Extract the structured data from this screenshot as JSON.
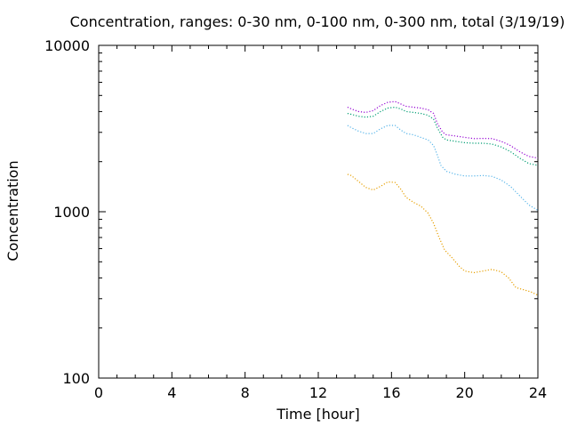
{
  "chart_data": {
    "type": "line",
    "title": "Concentration, ranges: 0-30 nm, 0-100 nm, 0-300 nm, total (3/19/19)",
    "xlabel": "Time [hour]",
    "ylabel": "Concentration",
    "xlim": [
      0,
      24
    ],
    "ylim": [
      100,
      10000
    ],
    "yscale": "log",
    "xticks": [
      0,
      4,
      8,
      12,
      16,
      20,
      24
    ],
    "xtick_labels": [
      "0",
      "4",
      "8",
      "12",
      "16",
      "20",
      "24"
    ],
    "yticks": [
      100,
      1000,
      10000
    ],
    "ytick_labels": [
      "100",
      "1000",
      "10000"
    ],
    "grid": false,
    "line_style": "dotted",
    "series": [
      {
        "color": "#e69f00",
        "x": [
          13.6,
          13.8,
          14.2,
          14.6,
          15.0,
          15.4,
          15.8,
          16.2,
          16.5,
          16.8,
          17.2,
          17.6,
          18.0,
          18.3,
          18.6,
          18.9,
          19.3,
          19.7,
          20.0,
          20.5,
          21.0,
          21.5,
          22.0,
          22.4,
          22.8,
          23.2,
          23.6,
          24.0
        ],
        "y": [
          1680,
          1650,
          1520,
          1400,
          1350,
          1420,
          1510,
          1500,
          1370,
          1220,
          1140,
          1080,
          980,
          850,
          700,
          590,
          530,
          470,
          440,
          430,
          440,
          450,
          435,
          400,
          350,
          340,
          330,
          315
        ]
      },
      {
        "color": "#56b4e9",
        "x": [
          13.6,
          13.8,
          14.2,
          14.6,
          15.0,
          15.4,
          15.8,
          16.2,
          16.5,
          16.8,
          17.2,
          17.6,
          18.0,
          18.3,
          18.5,
          18.7,
          19.0,
          19.5,
          20.0,
          20.5,
          21.0,
          21.5,
          22.0,
          22.5,
          23.0,
          23.5,
          24.0
        ],
        "y": [
          3300,
          3200,
          3050,
          2950,
          2950,
          3150,
          3300,
          3300,
          3100,
          2950,
          2900,
          2800,
          2700,
          2500,
          2200,
          1900,
          1750,
          1680,
          1640,
          1640,
          1650,
          1630,
          1550,
          1420,
          1250,
          1100,
          1020
        ]
      },
      {
        "color": "#009e73",
        "x": [
          13.6,
          13.8,
          14.2,
          14.6,
          15.0,
          15.4,
          15.8,
          16.2,
          16.5,
          16.8,
          17.2,
          17.6,
          18.0,
          18.3,
          18.5,
          18.8,
          19.0,
          19.5,
          20.0,
          20.5,
          21.0,
          21.5,
          22.0,
          22.5,
          23.0,
          23.5,
          24.0
        ],
        "y": [
          3900,
          3850,
          3750,
          3700,
          3750,
          4000,
          4200,
          4250,
          4150,
          4000,
          3950,
          3900,
          3800,
          3600,
          3200,
          2800,
          2700,
          2650,
          2600,
          2580,
          2580,
          2550,
          2450,
          2300,
          2100,
          1950,
          1900
        ]
      },
      {
        "color": "#9400d3",
        "x": [
          13.6,
          13.8,
          14.2,
          14.6,
          15.0,
          15.4,
          15.8,
          16.2,
          16.5,
          16.8,
          17.2,
          17.6,
          18.0,
          18.3,
          18.5,
          18.8,
          19.0,
          19.5,
          20.0,
          20.5,
          21.0,
          21.5,
          22.0,
          22.5,
          23.0,
          23.5,
          24.0
        ],
        "y": [
          4250,
          4150,
          4000,
          3950,
          4050,
          4350,
          4550,
          4600,
          4450,
          4300,
          4250,
          4200,
          4100,
          3900,
          3400,
          3000,
          2900,
          2850,
          2800,
          2750,
          2760,
          2750,
          2650,
          2500,
          2300,
          2150,
          2100
        ]
      }
    ]
  }
}
